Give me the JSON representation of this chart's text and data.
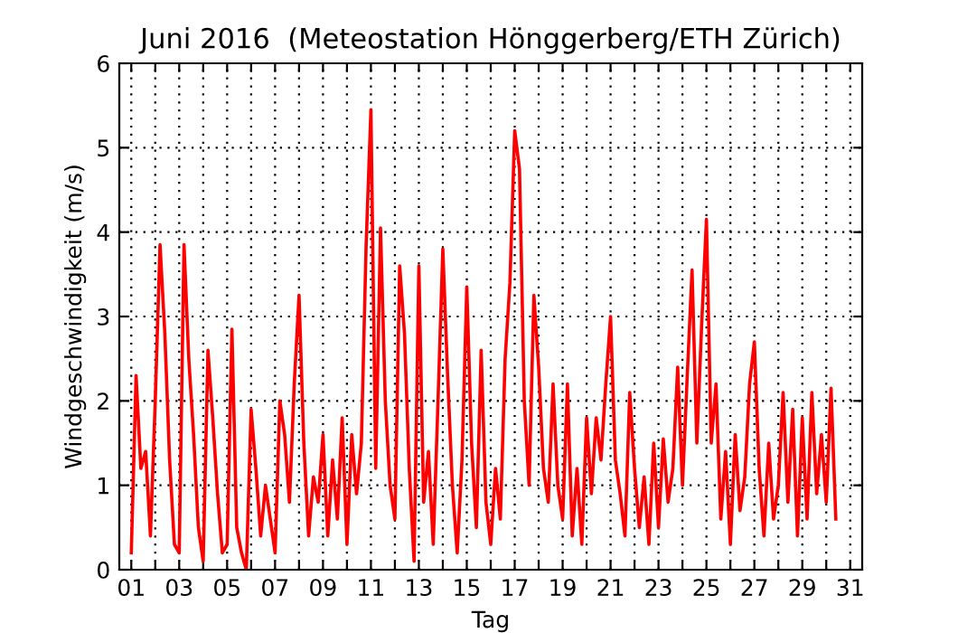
{
  "chart_data": {
    "type": "line",
    "title": "Juni 2016  (Meteostation Hönggerberg/ETH Zürich)",
    "xlabel": "Tag",
    "ylabel": "Windgeschwindigkeit (m/s)",
    "xlim": [
      0.5,
      31.5
    ],
    "ylim": [
      0,
      6
    ],
    "yticks": [
      0,
      1,
      2,
      3,
      4,
      5,
      6
    ],
    "xticks": [
      {
        "value": 1,
        "label": "01"
      },
      {
        "value": 2,
        "label": null
      },
      {
        "value": 3,
        "label": "03"
      },
      {
        "value": 4,
        "label": null
      },
      {
        "value": 5,
        "label": "05"
      },
      {
        "value": 6,
        "label": null
      },
      {
        "value": 7,
        "label": "07"
      },
      {
        "value": 8,
        "label": null
      },
      {
        "value": 9,
        "label": "09"
      },
      {
        "value": 10,
        "label": null
      },
      {
        "value": 11,
        "label": "11"
      },
      {
        "value": 12,
        "label": null
      },
      {
        "value": 13,
        "label": "13"
      },
      {
        "value": 14,
        "label": null
      },
      {
        "value": 15,
        "label": "15"
      },
      {
        "value": 16,
        "label": null
      },
      {
        "value": 17,
        "label": "17"
      },
      {
        "value": 18,
        "label": null
      },
      {
        "value": 19,
        "label": "19"
      },
      {
        "value": 20,
        "label": null
      },
      {
        "value": 21,
        "label": "21"
      },
      {
        "value": 22,
        "label": null
      },
      {
        "value": 23,
        "label": "23"
      },
      {
        "value": 24,
        "label": null
      },
      {
        "value": 25,
        "label": "25"
      },
      {
        "value": 26,
        "label": null
      },
      {
        "value": 27,
        "label": "27"
      },
      {
        "value": 28,
        "label": null
      },
      {
        "value": 29,
        "label": "29"
      },
      {
        "value": 30,
        "label": null
      },
      {
        "value": 31,
        "label": "31"
      }
    ],
    "grid": true,
    "marker": "none",
    "line_style": "solid",
    "x": [
      1.0,
      1.2,
      1.4,
      1.6,
      1.8,
      2.0,
      2.2,
      2.4,
      2.6,
      2.8,
      3.0,
      3.2,
      3.4,
      3.6,
      3.8,
      4.0,
      4.2,
      4.4,
      4.6,
      4.8,
      5.0,
      5.2,
      5.4,
      5.6,
      5.8,
      6.0,
      6.2,
      6.4,
      6.6,
      6.8,
      7.0,
      7.2,
      7.4,
      7.6,
      7.8,
      8.0,
      8.2,
      8.4,
      8.6,
      8.8,
      9.0,
      9.2,
      9.4,
      9.6,
      9.8,
      10.0,
      10.2,
      10.4,
      10.6,
      10.8,
      11.0,
      11.2,
      11.4,
      11.6,
      11.8,
      12.0,
      12.2,
      12.4,
      12.6,
      12.8,
      13.0,
      13.2,
      13.4,
      13.6,
      13.8,
      14.0,
      14.2,
      14.4,
      14.6,
      14.8,
      15.0,
      15.2,
      15.4,
      15.6,
      15.8,
      16.0,
      16.2,
      16.4,
      16.6,
      16.8,
      17.0,
      17.2,
      17.4,
      17.6,
      17.8,
      18.0,
      18.2,
      18.4,
      18.6,
      18.8,
      19.0,
      19.2,
      19.4,
      19.6,
      19.8,
      20.0,
      20.2,
      20.4,
      20.6,
      20.8,
      21.0,
      21.2,
      21.4,
      21.6,
      21.8,
      22.0,
      22.2,
      22.4,
      22.6,
      22.8,
      23.0,
      23.2,
      23.4,
      23.6,
      23.8,
      24.0,
      24.2,
      24.4,
      24.6,
      24.8,
      25.0,
      25.2,
      25.4,
      25.6,
      25.8,
      26.0,
      26.2,
      26.4,
      26.6,
      26.8,
      27.0,
      27.2,
      27.4,
      27.6,
      27.8,
      28.0,
      28.2,
      28.4,
      28.6,
      28.8,
      29.0,
      29.2,
      29.4,
      29.6,
      29.8,
      30.0,
      30.2,
      30.4
    ],
    "series": [
      {
        "color": "#ff0000",
        "values": [
          0.2,
          2.3,
          1.2,
          1.4,
          0.4,
          2.0,
          3.85,
          2.8,
          1.3,
          0.3,
          0.2,
          3.85,
          2.5,
          1.6,
          0.5,
          0.1,
          2.6,
          1.8,
          0.9,
          0.2,
          0.3,
          2.85,
          0.5,
          0.2,
          0.0,
          1.9,
          1.2,
          0.4,
          1.0,
          0.6,
          0.2,
          2.0,
          1.6,
          0.8,
          2.2,
          3.25,
          1.5,
          0.4,
          1.1,
          0.8,
          1.6,
          0.4,
          1.3,
          0.6,
          1.8,
          0.3,
          1.6,
          0.9,
          1.5,
          3.85,
          5.45,
          1.2,
          4.05,
          2.0,
          1.0,
          0.6,
          3.6,
          2.8,
          1.2,
          0.1,
          3.6,
          0.8,
          1.4,
          0.3,
          2.0,
          3.8,
          2.3,
          1.0,
          0.2,
          1.3,
          3.35,
          1.5,
          0.5,
          2.6,
          0.8,
          0.3,
          1.2,
          0.6,
          2.5,
          3.4,
          5.2,
          4.75,
          2.0,
          1.0,
          3.25,
          2.4,
          1.2,
          0.8,
          2.2,
          1.0,
          0.6,
          2.2,
          0.4,
          1.2,
          0.3,
          1.8,
          0.9,
          1.8,
          1.3,
          2.2,
          3.0,
          1.3,
          0.9,
          0.4,
          2.1,
          1.2,
          0.5,
          1.1,
          0.3,
          1.5,
          0.5,
          1.55,
          0.8,
          1.2,
          2.4,
          1.0,
          2.3,
          3.55,
          1.5,
          2.9,
          4.15,
          1.5,
          2.2,
          0.6,
          1.4,
          0.3,
          1.6,
          0.7,
          1.1,
          2.2,
          2.7,
          1.2,
          0.4,
          1.5,
          0.6,
          1.0,
          2.1,
          0.8,
          1.9,
          0.4,
          1.8,
          0.6,
          2.1,
          0.9,
          1.6,
          0.8,
          2.15,
          0.6
        ]
      }
    ]
  }
}
